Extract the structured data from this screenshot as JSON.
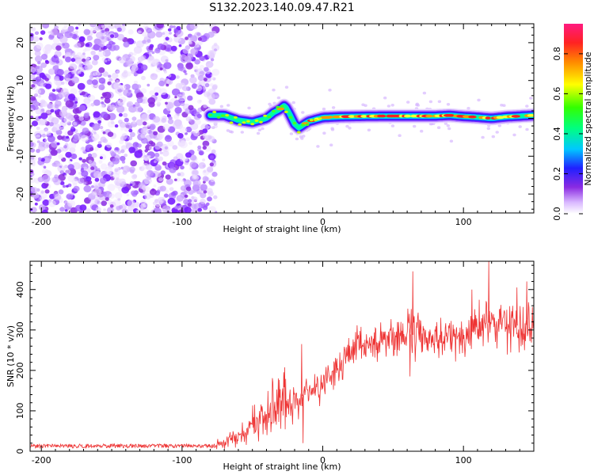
{
  "title": "S132.2023.140.09.47.R21",
  "chart_data": [
    {
      "type": "heatmap",
      "id": "spectrogram",
      "xlabel": "Height of straight line (km)",
      "ylabel": "Frequency (Hz)",
      "xlim": [
        -208,
        150
      ],
      "ylim": [
        -25,
        25
      ],
      "xticks": [
        -200,
        -100,
        0,
        100
      ],
      "yticks": [
        -20,
        -10,
        0,
        10,
        20
      ],
      "noise_region_x": [
        -208,
        -80
      ],
      "signal_start_x": -80,
      "ridge": {
        "x": [
          -80,
          -70,
          -60,
          -50,
          -40,
          -35,
          -30,
          -27,
          -24,
          -20,
          -17,
          -13,
          -10,
          -5,
          0,
          10,
          20,
          40,
          60,
          80,
          90,
          100,
          110,
          120,
          130,
          140,
          150
        ],
        "y": [
          0.8,
          0.8,
          -0.5,
          -1.0,
          0.0,
          1.5,
          2.5,
          3.5,
          1.5,
          -1.5,
          -2.5,
          -1.5,
          -0.8,
          -0.3,
          0.2,
          0.4,
          0.5,
          0.6,
          0.6,
          0.6,
          0.8,
          0.5,
          0.3,
          0.0,
          0.4,
          0.6,
          0.8
        ]
      },
      "colorbar": {
        "label": "Normalized spectral amplitude",
        "range": [
          0,
          0.95
        ],
        "ticks": [
          0.0,
          0.2,
          0.4,
          0.6,
          0.8
        ]
      }
    },
    {
      "type": "line",
      "id": "snr",
      "xlabel": "Height of straight line (km)",
      "ylabel": "SNR (10 * v/v)",
      "xlim": [
        -208,
        150
      ],
      "ylim": [
        0,
        470
      ],
      "xticks": [
        -200,
        -100,
        0,
        100
      ],
      "yticks": [
        0,
        100,
        200,
        300,
        400
      ],
      "color": "#ee3333",
      "envelope": {
        "x": [
          -208,
          -80,
          -70,
          -60,
          -50,
          -40,
          -30,
          -20,
          -10,
          0,
          10,
          20,
          30,
          40,
          50,
          60,
          70,
          80,
          90,
          100,
          110,
          120,
          130,
          140,
          150
        ],
        "y": [
          10,
          10,
          20,
          45,
          65,
          90,
          110,
          125,
          150,
          170,
          200,
          240,
          260,
          275,
          285,
          290,
          285,
          280,
          280,
          275,
          310,
          320,
          315,
          310,
          315
        ]
      },
      "spikes": [
        {
          "x": -15,
          "y": 265
        },
        {
          "x": -14,
          "y": 20
        },
        {
          "x": 64,
          "y": 445
        },
        {
          "x": 62,
          "y": 185
        },
        {
          "x": 118,
          "y": 470
        },
        {
          "x": 106,
          "y": 400
        },
        {
          "x": 138,
          "y": 405
        },
        {
          "x": 145,
          "y": 420
        }
      ]
    }
  ]
}
